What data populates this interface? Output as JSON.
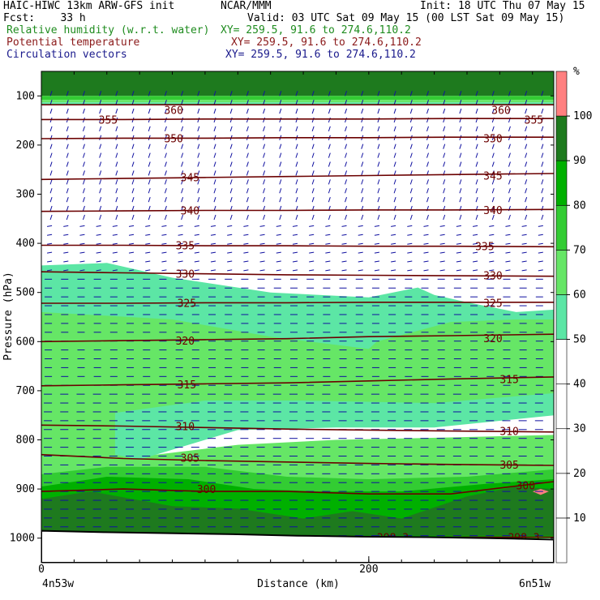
{
  "header": {
    "model": "HAIC-HIWC 13km ARW-GFS init",
    "org": "NCAR/MMM",
    "init": "Init: 18 UTC Thu 07 May 15",
    "fcst": "Fcst:    33 h",
    "valid": "Valid: 03 UTC Sat 09 May 15 (00 LST Sat 09 May 15)",
    "fields": [
      {
        "label": "Relative humidity (w.r.t. water)",
        "xy": "XY= 259.5, 91.6 to 274.6,110.2",
        "color": "#1f8c1f"
      },
      {
        "label": "Potential temperature",
        "xy": "XY= 259.5, 91.6 to 274.6,110.2",
        "color": "#8b1a1a"
      },
      {
        "label": "Circulation vectors",
        "xy": "XY= 259.5, 91.6 to 274.6,110.2",
        "color": "#1a1a8c"
      }
    ]
  },
  "colors": {
    "theta": "#6b0000",
    "vector": "#1010a0",
    "terrain": "#000000",
    "rh_bins": [
      "#ffffff",
      "#ffffff",
      "#ffffff",
      "#ffffff",
      "#ffffff",
      "#5ce6a5",
      "#66e666",
      "#33cc33",
      "#00b000",
      "#1e7a1e",
      "#ff8080"
    ]
  },
  "chart_data": {
    "type": "contour",
    "xlabel": "Distance (km)",
    "ylabel": "Pressure (hPa)",
    "xlim": [
      0,
      313
    ],
    "ylim": [
      1050,
      50
    ],
    "x_ticks": [
      0,
      200
    ],
    "y_ticks": [
      100,
      200,
      300,
      400,
      500,
      600,
      700,
      800,
      900,
      1000
    ],
    "x_endpoint_labels": [
      "4n53w",
      "6n51w"
    ],
    "colorbar": {
      "unit": "%",
      "levels": [
        10,
        20,
        30,
        40,
        50,
        60,
        70,
        80,
        90,
        100
      ]
    },
    "theta_contours": [
      {
        "label": "360",
        "p": [
          118,
          118,
          118,
          118,
          118,
          118,
          118
        ],
        "label_positions": [
          [
            75,
            128
          ],
          [
            275,
            128
          ]
        ]
      },
      {
        "label": "355",
        "p": [
          148,
          148,
          147,
          147,
          147,
          146,
          146
        ],
        "label_positions": [
          [
            35,
            148
          ],
          [
            295,
            148
          ]
        ]
      },
      {
        "label": "350",
        "p": [
          187,
          186,
          186,
          185,
          185,
          184,
          184
        ],
        "label_positions": [
          [
            75,
            186
          ],
          [
            270,
            186
          ]
        ]
      },
      {
        "label": "345",
        "p": [
          270,
          268,
          266,
          264,
          262,
          260,
          258
        ],
        "label_positions": [
          [
            85,
            265
          ],
          [
            270,
            262
          ]
        ]
      },
      {
        "label": "340",
        "p": [
          335,
          334,
          333,
          333,
          332,
          332,
          331
        ],
        "label_positions": [
          [
            85,
            333
          ],
          [
            270,
            332
          ]
        ]
      },
      {
        "label": "335",
        "p": [
          404,
          404,
          405,
          405,
          406,
          406,
          407
        ],
        "label_positions": [
          [
            82,
            404
          ],
          [
            265,
            406
          ]
        ]
      },
      {
        "label": "330",
        "p": [
          458,
          460,
          462,
          464,
          465,
          466,
          467
        ],
        "label_positions": [
          [
            82,
            462
          ],
          [
            270,
            465
          ]
        ]
      },
      {
        "label": "325",
        "p": [
          522,
          522,
          521,
          521,
          520,
          520,
          520
        ],
        "label_positions": [
          [
            83,
            521
          ],
          [
            270,
            521
          ]
        ]
      },
      {
        "label": "320",
        "p": [
          600,
          598,
          596,
          594,
          590,
          588,
          585
        ],
        "label_positions": [
          [
            82,
            598
          ],
          [
            270,
            593
          ]
        ]
      },
      {
        "label": "315",
        "p": [
          690,
          688,
          686,
          684,
          680,
          676,
          672
        ],
        "label_positions": [
          [
            83,
            687
          ],
          [
            280,
            676
          ]
        ]
      },
      {
        "label": "310",
        "p": [
          770,
          772,
          775,
          778,
          780,
          782,
          784
        ],
        "label_positions": [
          [
            82,
            772
          ],
          [
            280,
            782
          ]
        ]
      },
      {
        "label": "305",
        "p": [
          830,
          838,
          842,
          845,
          848,
          850,
          852
        ],
        "label_positions": [
          [
            85,
            836
          ],
          [
            280,
            850
          ]
        ]
      },
      {
        "label": "300",
        "p": [
          905,
          900,
          905,
          905,
          910,
          910,
          885
        ],
        "label_positions": [
          [
            95,
            900
          ],
          [
            290,
            892
          ]
        ]
      },
      {
        "label": "298.3",
        "p": [
          998,
          998,
          998,
          998,
          998,
          998,
          998
        ],
        "label_positions": [
          [
            205,
            998
          ],
          [
            285,
            998
          ]
        ]
      }
    ],
    "theta_x": [
      0,
      50,
      100,
      150,
      200,
      250,
      313
    ],
    "rh_regions": [
      {
        "rh": 95,
        "top": [
          [
            0,
            50
          ],
          [
            313,
            50
          ]
        ],
        "bottom": [
          [
            313,
            100
          ],
          [
            0,
            100
          ]
        ]
      },
      {
        "rh": 75,
        "top": [
          [
            0,
            100
          ],
          [
            313,
            100
          ]
        ],
        "bottom": [
          [
            313,
            108
          ],
          [
            0,
            108
          ]
        ]
      },
      {
        "rh": 65,
        "top": [
          [
            0,
            108
          ],
          [
            313,
            108
          ]
        ],
        "bottom": [
          [
            313,
            113
          ],
          [
            0,
            113
          ]
        ]
      },
      {
        "rh": 55,
        "top": [
          [
            0,
            113
          ],
          [
            313,
            113
          ]
        ],
        "bottom": [
          [
            313,
            117
          ],
          [
            0,
            117
          ]
        ]
      },
      {
        "rh": 55,
        "top": [
          [
            0,
            445
          ],
          [
            40,
            440
          ],
          [
            80,
            470
          ],
          [
            140,
            500
          ],
          [
            200,
            510
          ],
          [
            230,
            490
          ],
          [
            240,
            505
          ],
          [
            260,
            520
          ],
          [
            290,
            540
          ],
          [
            313,
            535
          ]
        ],
        "bottom": [
          [
            313,
            1000
          ],
          [
            0,
            1000
          ]
        ]
      },
      {
        "rh": 65,
        "top": [
          [
            0,
            540
          ],
          [
            80,
            555
          ],
          [
            140,
            590
          ],
          [
            200,
            615
          ],
          [
            205,
            600
          ],
          [
            250,
            560
          ],
          [
            290,
            555
          ],
          [
            313,
            555
          ]
        ],
        "bottom": [
          [
            313,
            990
          ],
          [
            0,
            990
          ]
        ]
      },
      {
        "rh": 40,
        "top": [
          [
            45,
            780
          ],
          [
            70,
            740
          ],
          [
            120,
            730
          ],
          [
            180,
            728
          ],
          [
            250,
            735
          ],
          [
            313,
            720
          ]
        ],
        "bottom": [
          [
            313,
            790
          ],
          [
            250,
            795
          ],
          [
            180,
            800
          ],
          [
            120,
            810
          ],
          [
            70,
            830
          ],
          [
            50,
            820
          ]
        ]
      },
      {
        "rh": 55,
        "top": [
          [
            45,
            745
          ],
          [
            100,
            720
          ],
          [
            160,
            720
          ],
          [
            240,
            725
          ],
          [
            313,
            705
          ]
        ],
        "bottom": [
          [
            313,
            750
          ],
          [
            240,
            775
          ],
          [
            180,
            775
          ],
          [
            120,
            780
          ],
          [
            60,
            840
          ],
          [
            45,
            830
          ]
        ]
      },
      {
        "rh": 75,
        "top": [
          [
            0,
            870
          ],
          [
            40,
            855
          ],
          [
            100,
            855
          ],
          [
            150,
            875
          ],
          [
            200,
            880
          ],
          [
            260,
            875
          ],
          [
            313,
            860
          ]
        ],
        "bottom": [
          [
            313,
            1000
          ],
          [
            0,
            1000
          ]
        ]
      },
      {
        "rh": 85,
        "top": [
          [
            0,
            895
          ],
          [
            40,
            875
          ],
          [
            90,
            880
          ],
          [
            130,
            900
          ],
          [
            170,
            905
          ],
          [
            220,
            905
          ],
          [
            270,
            890
          ],
          [
            313,
            880
          ]
        ],
        "bottom": [
          [
            313,
            1000
          ],
          [
            0,
            1000
          ]
        ]
      },
      {
        "rh": 95,
        "top": [
          [
            0,
            920
          ],
          [
            30,
            905
          ],
          [
            80,
            935
          ],
          [
            120,
            940
          ],
          [
            160,
            960
          ],
          [
            190,
            945
          ],
          [
            220,
            960
          ],
          [
            260,
            915
          ],
          [
            290,
            895
          ],
          [
            313,
            900
          ]
        ],
        "bottom": [
          [
            313,
            995
          ],
          [
            0,
            995
          ]
        ]
      },
      {
        "rh": 100,
        "top": [
          [
            300,
            905
          ],
          [
            305,
            900
          ],
          [
            310,
            905
          ],
          [
            305,
            912
          ]
        ],
        "bottom": []
      }
    ],
    "terrain_p": [
      985,
      988,
      990,
      992,
      995,
      997,
      998,
      1000,
      1003
    ]
  }
}
